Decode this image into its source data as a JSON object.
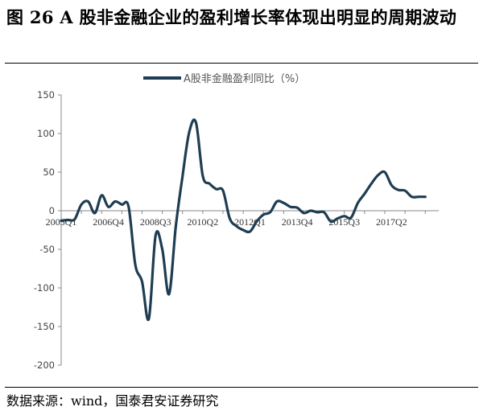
{
  "figure": {
    "title": "图 26 A 股非金融企业的盈利增长率体现出明显的周期波动",
    "source": "数据来源：wind，国泰君安证券研究"
  },
  "chart_data": {
    "type": "line",
    "title": "",
    "xlabel": "",
    "ylabel": "",
    "ylim": [
      -200,
      150
    ],
    "yticks": [
      150,
      100,
      50,
      0,
      -50,
      -100,
      -150,
      -200
    ],
    "xlim": [
      "2005Q1",
      "2018Q4"
    ],
    "xtick_labels": [
      "2005Q1",
      "2006Q4",
      "2008Q3",
      "2010Q2",
      "2012Q1",
      "2013Q4",
      "2015Q3",
      "2017Q2"
    ],
    "x_axis_at": 0,
    "grid": false,
    "legend": "top-center",
    "colors": {
      "line": "#1f3d52",
      "axis": "#888888"
    },
    "series": [
      {
        "name": "A股非金融盈利同比（%）",
        "x": [
          "2005Q1",
          "2005Q2",
          "2005Q3",
          "2005Q4",
          "2006Q1",
          "2006Q2",
          "2006Q3",
          "2006Q4",
          "2007Q1",
          "2007Q2",
          "2007Q3",
          "2007Q4",
          "2008Q1",
          "2008Q2",
          "2008Q3",
          "2008Q4",
          "2009Q1",
          "2009Q2",
          "2009Q3",
          "2009Q4",
          "2010Q1",
          "2010Q2",
          "2010Q3",
          "2010Q4",
          "2011Q1",
          "2011Q2",
          "2011Q3",
          "2011Q4",
          "2012Q1",
          "2012Q2",
          "2012Q3",
          "2012Q4",
          "2013Q1",
          "2013Q2",
          "2013Q3",
          "2013Q4",
          "2014Q1",
          "2014Q2",
          "2014Q3",
          "2014Q4",
          "2015Q1",
          "2015Q2",
          "2015Q3",
          "2015Q4",
          "2016Q1",
          "2016Q2",
          "2016Q3",
          "2016Q4",
          "2017Q1",
          "2017Q2",
          "2017Q3",
          "2017Q4",
          "2018Q1",
          "2018Q2",
          "2018Q3"
        ],
        "values": [
          -13,
          -12,
          -11,
          8,
          12,
          -3,
          20,
          5,
          12,
          8,
          5,
          -70,
          -92,
          -140,
          -32,
          -50,
          -108,
          -20,
          45,
          102,
          114,
          45,
          35,
          28,
          26,
          -10,
          -20,
          -25,
          -27,
          -14,
          -5,
          -2,
          12,
          10,
          5,
          4,
          -3,
          0,
          -2,
          -2,
          -14,
          -10,
          -7,
          -9,
          10,
          22,
          35,
          46,
          50,
          33,
          27,
          26,
          18,
          18,
          18
        ]
      }
    ]
  }
}
